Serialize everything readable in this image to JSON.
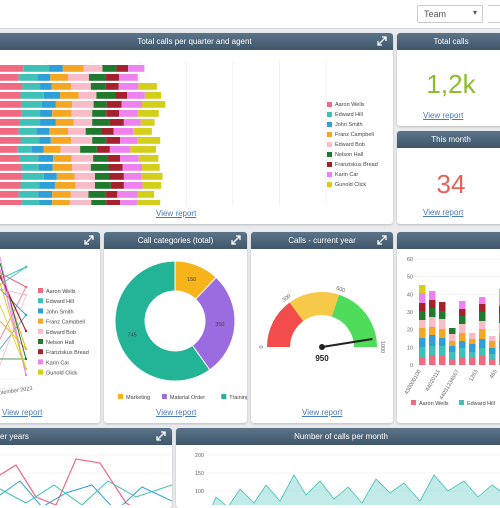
{
  "topbar": {
    "team_select": "Team",
    "caret": "▾"
  },
  "card_quarter": {
    "title": "Total calls per quarter and agent",
    "link": "View report",
    "chart_data": {
      "type": "bar",
      "orientation": "horizontal",
      "stacked": true,
      "xlim": [
        0,
        700
      ],
      "x_ticks": [
        "0",
        "100",
        "200",
        "300",
        "400",
        "500",
        "600",
        "700"
      ],
      "legend_position": "right",
      "series": [
        {
          "name": "Aaron Wells",
          "color": "#f06a82",
          "values": [
            50,
            40,
            48,
            44,
            45,
            46,
            42,
            40,
            44,
            38,
            42,
            45,
            48,
            44,
            40,
            46
          ]
        },
        {
          "name": "Edward Hill",
          "color": "#3fc1b7",
          "values": [
            55,
            40,
            38,
            50,
            45,
            40,
            44,
            38,
            40,
            30,
            40,
            38,
            46,
            40,
            42,
            38
          ]
        },
        {
          "name": "John Smith",
          "color": "#2f9fd8",
          "values": [
            30,
            28,
            25,
            35,
            30,
            26,
            34,
            28,
            25,
            26,
            32,
            30,
            28,
            34,
            30,
            28
          ]
        },
        {
          "name": "Franz Campbell",
          "color": "#f5a623",
          "values": [
            45,
            38,
            42,
            40,
            35,
            42,
            38,
            40,
            44,
            36,
            40,
            42,
            38,
            44,
            40,
            38
          ]
        },
        {
          "name": "Edward Bob",
          "color": "#f8bcc8",
          "values": [
            40,
            45,
            42,
            38,
            46,
            44,
            40,
            38,
            45,
            42,
            46,
            40,
            44,
            42,
            38,
            46
          ]
        },
        {
          "name": "Nelson Hall",
          "color": "#1f7a2e",
          "values": [
            30,
            35,
            32,
            40,
            28,
            30,
            38,
            34,
            30,
            36,
            32,
            38,
            30,
            34,
            36,
            32
          ]
        },
        {
          "name": "Franziskus Bread",
          "color": "#a3222e",
          "values": [
            25,
            30,
            28,
            26,
            32,
            28,
            30,
            26,
            30,
            28,
            26,
            30,
            32,
            28,
            26,
            30
          ]
        },
        {
          "name": "Karin Car",
          "color": "#ee82ee",
          "values": [
            35,
            40,
            42,
            38,
            44,
            40,
            36,
            42,
            38,
            44,
            40,
            42,
            38,
            40,
            44,
            36
          ]
        },
        {
          "name": "Gunold Click",
          "color": "#d4cf1a",
          "values": [
            0,
            0,
            40,
            35,
            50,
            45,
            30,
            40,
            48,
            55,
            42,
            38,
            45,
            40,
            35,
            50
          ]
        }
      ]
    }
  },
  "card_total": {
    "title": "Total calls",
    "value": "1,2k",
    "link": "View report",
    "value_color": "#8bbd2b"
  },
  "card_month": {
    "title": "This month",
    "value": "34",
    "link": "View report",
    "value_color": "#e9605a"
  },
  "card_agents": {
    "link": "View report",
    "x_tick": "eptember 2023",
    "legend": [
      {
        "name": "Aaron Wells",
        "color": "#f06a82"
      },
      {
        "name": "Edward Hill",
        "color": "#3fc1b7"
      },
      {
        "name": "John Smith",
        "color": "#2f9fd8"
      },
      {
        "name": "Franz Campbell",
        "color": "#f5a623"
      },
      {
        "name": "Edward Bob",
        "color": "#f8bcc8"
      },
      {
        "name": "Nelson Hall",
        "color": "#1f7a2e"
      },
      {
        "name": "Franziskus Bread",
        "color": "#a3222e"
      },
      {
        "name": "Karin Car",
        "color": "#ee82ee"
      },
      {
        "name": "Gunold Click",
        "color": "#d4cf1a"
      }
    ]
  },
  "card_categories": {
    "title": "Call categories (total)",
    "link": "View report",
    "chart_data": {
      "type": "pie",
      "donut": true,
      "slices": [
        {
          "label": "Marketing",
          "value": 150,
          "color": "#f6b41a"
        },
        {
          "label": "Material Order",
          "value": 350,
          "color": "#9b6be0"
        },
        {
          "label": "Training",
          "value": 745,
          "color": "#23b497"
        }
      ]
    }
  },
  "card_current_year": {
    "title": "Calls - current year",
    "link": "View report",
    "gauge": {
      "min": "0",
      "t1": "300",
      "t2": "600",
      "max": "1000",
      "value": "950",
      "fraction": 0.95
    }
  },
  "card_stacked_right": {
    "categories": [
      "430000100",
      "44020111",
      "44031234567",
      "1263",
      "465"
    ],
    "legend": [
      {
        "name": "Aaron Wells",
        "color": "#f06a82"
      },
      {
        "name": "Edward Hill",
        "color": "#3fc1b7"
      }
    ],
    "y_ticks": [
      "60",
      "50",
      "40",
      "30",
      "20",
      "10",
      "0"
    ]
  },
  "card_years": {
    "title": "er years"
  },
  "card_month_calls": {
    "title": "Number of calls per month",
    "y_ticks": [
      "200",
      "150",
      "100"
    ]
  }
}
